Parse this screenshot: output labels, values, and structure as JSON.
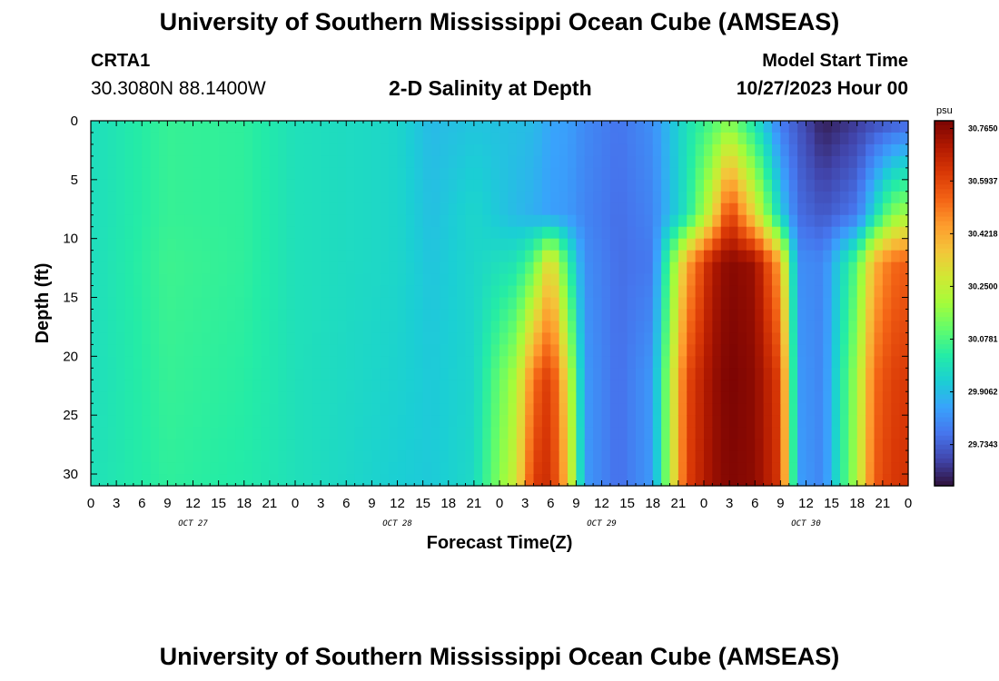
{
  "header": {
    "title": "University of Southern Mississippi Ocean Cube (AMSEAS)",
    "station": "CRTA1",
    "coords": "30.3080N  88.1400W",
    "subtitle": "2-D Salinity at Depth",
    "start_label": "Model Start Time",
    "start_value": "10/27/2023 Hour 00"
  },
  "footer": {
    "title": "University of Southern Mississippi Ocean Cube (AMSEAS)"
  },
  "chart_data": {
    "type": "heatmap",
    "title": "2-D Salinity at Depth",
    "xlabel": "Forecast Time(Z)",
    "ylabel": "Depth (ft)",
    "x_unit": "hours since 10/27/2023 00Z",
    "xlim": [
      0,
      96
    ],
    "ylim": [
      0,
      31
    ],
    "y_inverted": true,
    "x_ticks": [
      0,
      3,
      6,
      9,
      12,
      15,
      18,
      21,
      24,
      27,
      30,
      33,
      36,
      39,
      42,
      45,
      48,
      51,
      54,
      57,
      60,
      63,
      66,
      69,
      72,
      75,
      78,
      81,
      84,
      87,
      90,
      93,
      96
    ],
    "x_tick_labels": [
      "0",
      "3",
      "6",
      "9",
      "12",
      "15",
      "18",
      "21",
      "0",
      "3",
      "6",
      "9",
      "12",
      "15",
      "18",
      "21",
      "0",
      "3",
      "6",
      "9",
      "12",
      "15",
      "18",
      "21",
      "0",
      "3",
      "6",
      "9",
      "12",
      "15",
      "18",
      "21",
      "0"
    ],
    "day_labels": [
      {
        "x": 12,
        "label": "OCT 27"
      },
      {
        "x": 36,
        "label": "OCT 28"
      },
      {
        "x": 60,
        "label": "OCT 29"
      },
      {
        "x": 84,
        "label": "OCT 30"
      }
    ],
    "y_ticks": [
      0,
      5,
      10,
      15,
      20,
      25,
      30
    ],
    "colorbar": {
      "unit": "psu",
      "min": 29.6,
      "max": 30.79,
      "labels": [
        "30.7650",
        "30.5937",
        "30.4218",
        "30.2500",
        "30.0781",
        "29.9062",
        "29.7343"
      ],
      "colors": [
        "#30123b",
        "#4145ab",
        "#4675ed",
        "#39a2fc",
        "#1bcfd4",
        "#24eca6",
        "#61fc6c",
        "#a4fc3b",
        "#d1e834",
        "#f3c63a",
        "#fe9b2d",
        "#f36315",
        "#d93806",
        "#b11901",
        "#7a0403"
      ]
    },
    "salinity_summary": {
      "depth_ft": [
        0,
        8,
        12,
        22,
        31
      ],
      "rows": [
        {
          "x": 0,
          "values": [
            29.98,
            29.98,
            29.98,
            29.98,
            29.99
          ]
        },
        {
          "x": 9,
          "values": [
            30.05,
            30.05,
            30.06,
            30.05,
            30.04
          ]
        },
        {
          "x": 18,
          "values": [
            30.04,
            30.04,
            30.04,
            30.03,
            30.02
          ]
        },
        {
          "x": 24,
          "values": [
            29.99,
            29.99,
            29.99,
            29.99,
            29.99
          ]
        },
        {
          "x": 36,
          "values": [
            29.96,
            29.96,
            29.96,
            29.95,
            29.94
          ]
        },
        {
          "x": 40,
          "values": [
            29.9,
            29.91,
            29.92,
            29.93,
            29.93
          ]
        },
        {
          "x": 45,
          "values": [
            29.92,
            29.96,
            29.96,
            29.96,
            29.97
          ]
        },
        {
          "x": 50,
          "values": [
            29.91,
            29.9,
            30.0,
            30.22,
            30.28
          ]
        },
        {
          "x": 52,
          "values": [
            29.9,
            29.88,
            30.1,
            30.52,
            30.62
          ]
        },
        {
          "x": 54,
          "values": [
            29.86,
            29.85,
            30.35,
            30.63,
            30.65
          ]
        },
        {
          "x": 56,
          "values": [
            29.85,
            29.84,
            30.05,
            30.3,
            30.38
          ]
        },
        {
          "x": 58,
          "values": [
            29.81,
            29.8,
            29.82,
            29.84,
            29.84
          ]
        },
        {
          "x": 62,
          "values": [
            29.77,
            29.76,
            29.76,
            29.76,
            29.76
          ]
        },
        {
          "x": 66,
          "values": [
            29.82,
            29.8,
            29.78,
            29.84,
            29.84
          ]
        },
        {
          "x": 70,
          "values": [
            29.99,
            30.0,
            30.42,
            30.58,
            30.6
          ]
        },
        {
          "x": 73,
          "values": [
            30.08,
            30.3,
            30.7,
            30.74,
            30.74
          ]
        },
        {
          "x": 75,
          "values": [
            30.15,
            30.62,
            30.77,
            30.79,
            30.78
          ]
        },
        {
          "x": 78,
          "values": [
            29.99,
            30.32,
            30.74,
            30.76,
            30.76
          ]
        },
        {
          "x": 81,
          "values": [
            29.78,
            29.95,
            30.42,
            30.6,
            30.62
          ]
        },
        {
          "x": 83,
          "values": [
            29.72,
            29.76,
            29.82,
            29.84,
            29.85
          ]
        },
        {
          "x": 86,
          "values": [
            29.62,
            29.72,
            29.8,
            29.8,
            29.8
          ]
        },
        {
          "x": 90,
          "values": [
            29.67,
            29.78,
            30.1,
            30.2,
            30.22
          ]
        },
        {
          "x": 92,
          "values": [
            29.7,
            29.97,
            30.4,
            30.52,
            30.55
          ]
        },
        {
          "x": 94,
          "values": [
            29.72,
            30.15,
            30.52,
            30.6,
            30.62
          ]
        },
        {
          "x": 96,
          "values": [
            29.74,
            30.2,
            30.55,
            30.62,
            30.64
          ]
        }
      ]
    }
  }
}
